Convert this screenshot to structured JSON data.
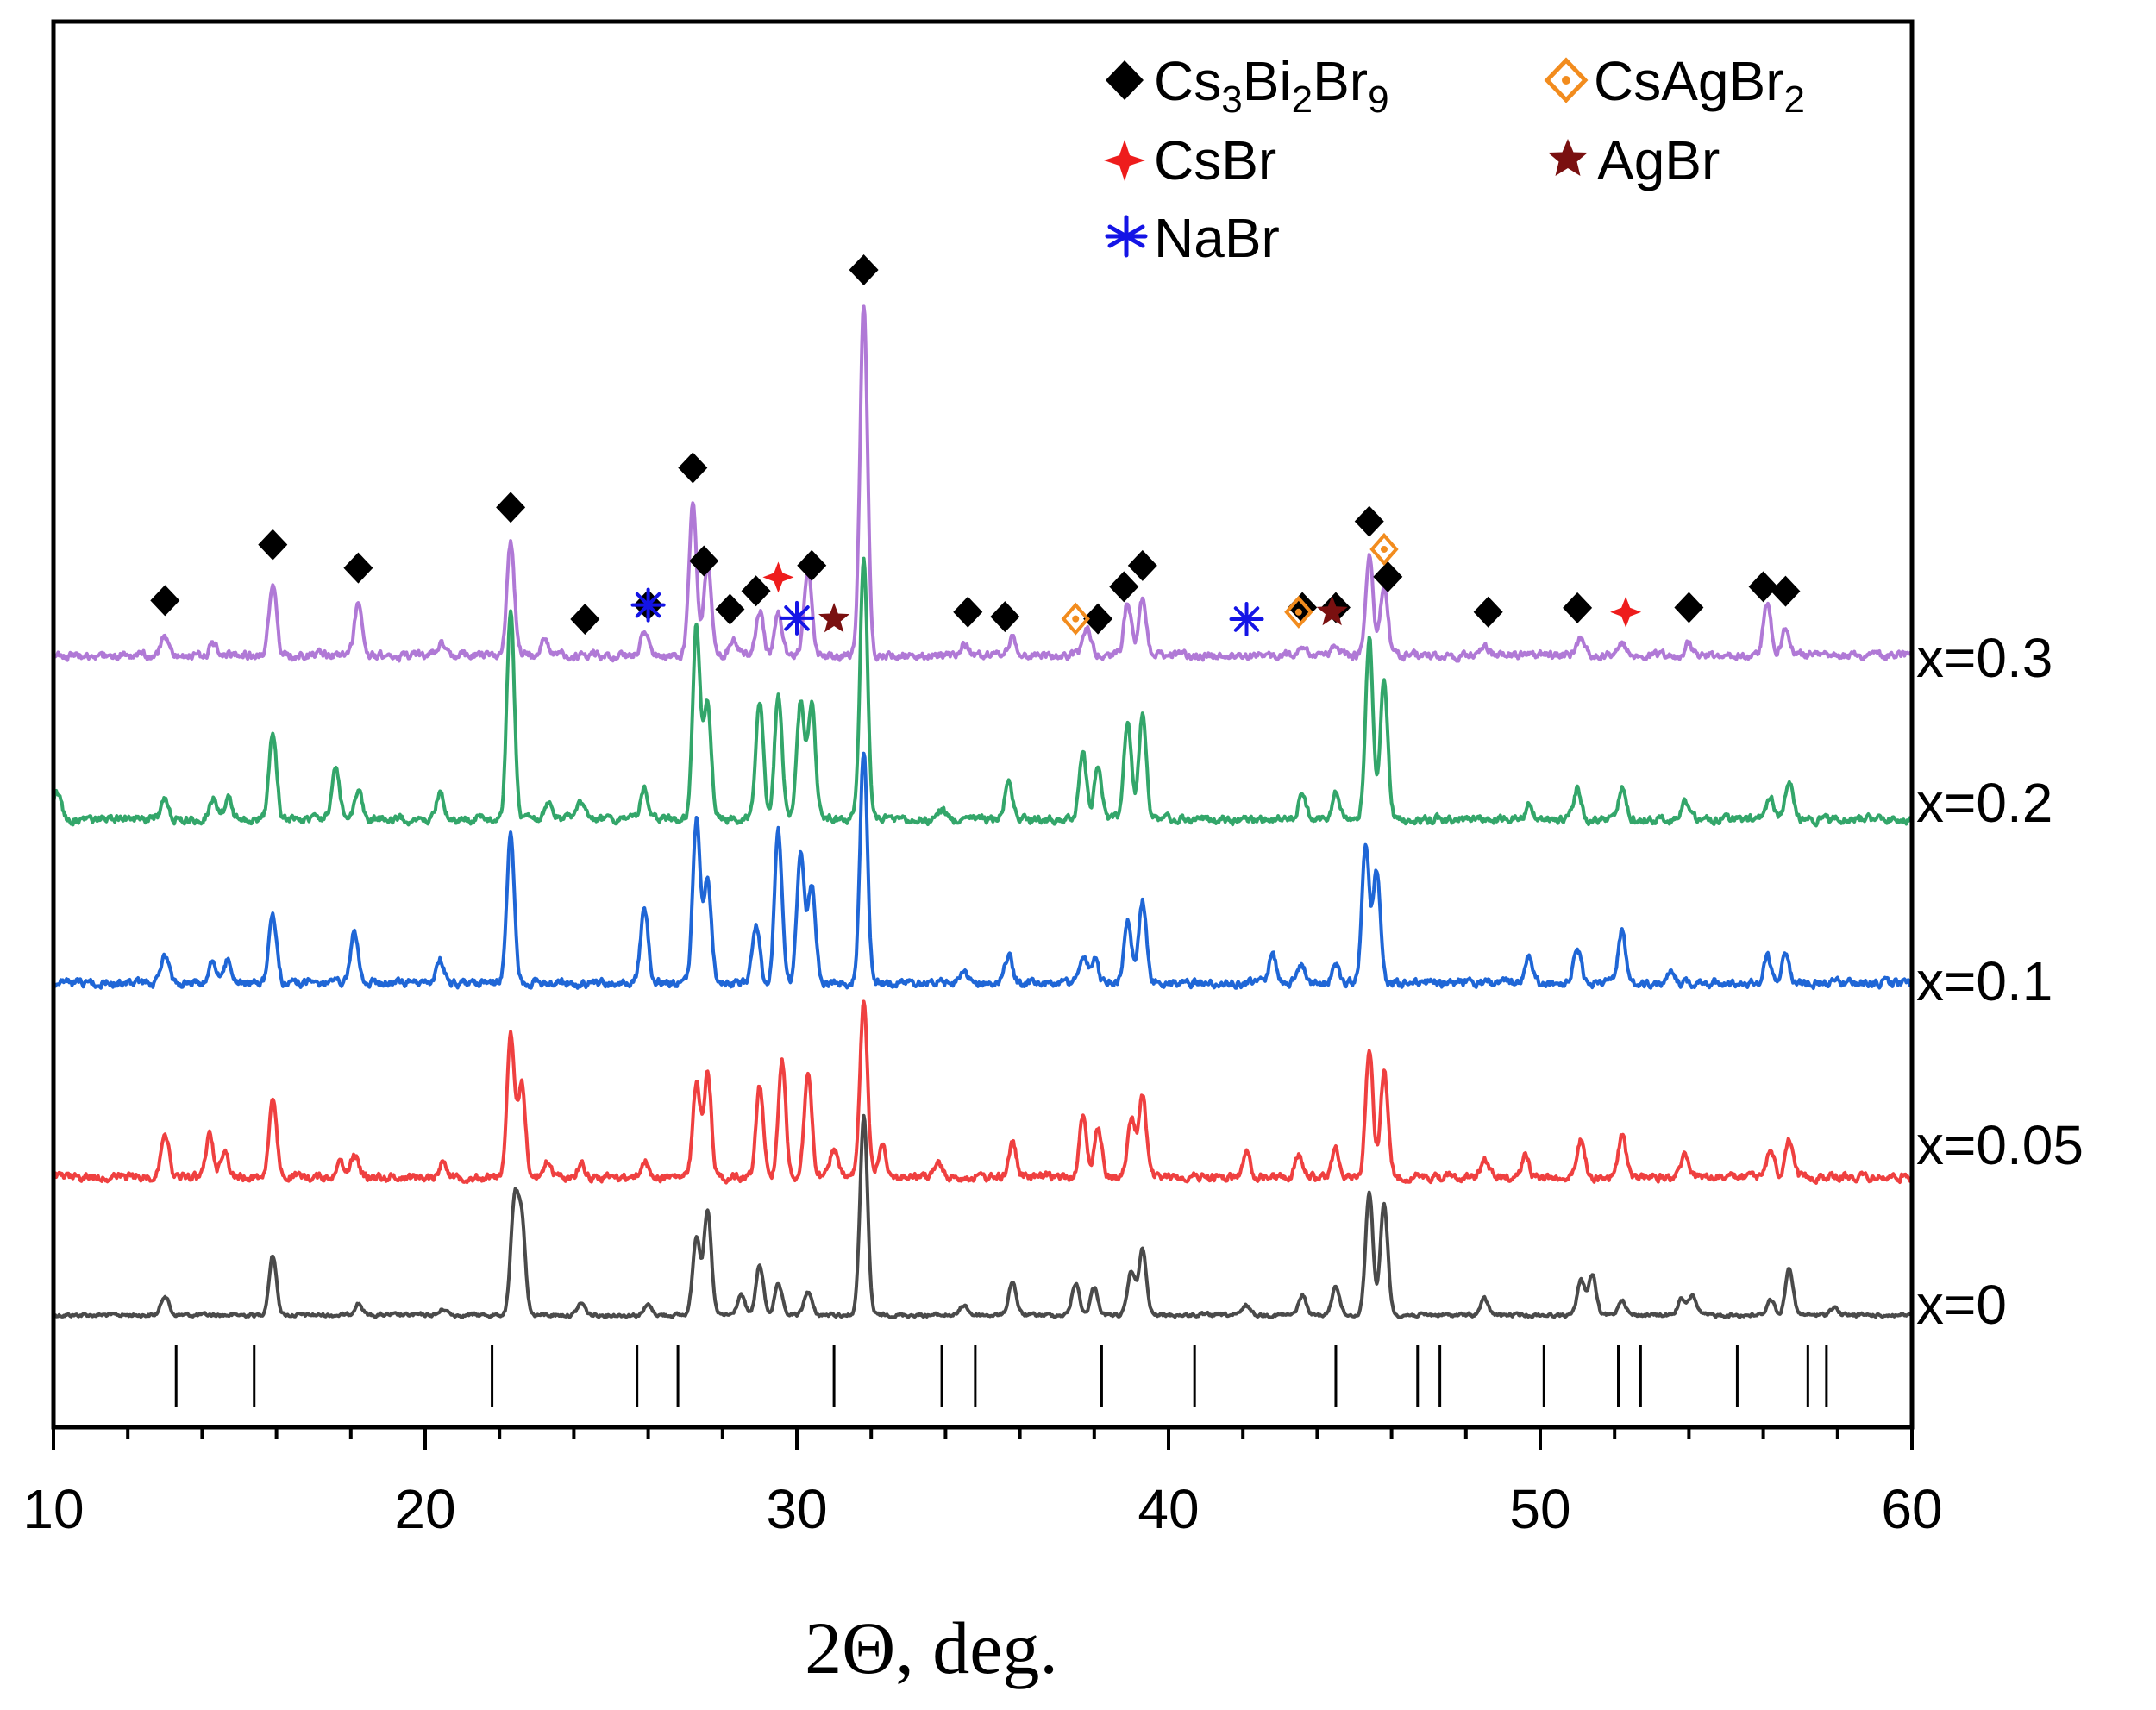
{
  "chart_data": {
    "type": "line",
    "title": "",
    "xlabel": "2Θ, deg.",
    "ylabel": "",
    "xlim": [
      10,
      60
    ],
    "xticks": [
      10,
      20,
      30,
      40,
      50,
      60
    ],
    "grid": false,
    "series": [
      {
        "name": "x=0",
        "color": "#4a4a4a",
        "offset": 0,
        "peaks": [
          [
            13.0,
            0.1
          ],
          [
            15.9,
            0.3
          ],
          [
            18.2,
            0.06
          ],
          [
            20.5,
            0.03
          ],
          [
            22.4,
            0.55
          ],
          [
            22.6,
            0.45
          ],
          [
            24.2,
            0.06
          ],
          [
            26.0,
            0.05
          ],
          [
            27.3,
            0.4
          ],
          [
            27.6,
            0.52
          ],
          [
            28.5,
            0.1
          ],
          [
            29.0,
            0.25
          ],
          [
            29.5,
            0.15
          ],
          [
            30.3,
            0.12
          ],
          [
            31.8,
            1.0
          ],
          [
            34.5,
            0.05
          ],
          [
            35.8,
            0.17
          ],
          [
            37.5,
            0.16
          ],
          [
            38.0,
            0.14
          ],
          [
            39.0,
            0.22
          ],
          [
            39.3,
            0.33
          ],
          [
            42.1,
            0.05
          ],
          [
            43.6,
            0.1
          ],
          [
            44.5,
            0.15
          ],
          [
            45.4,
            0.62
          ],
          [
            45.8,
            0.56
          ],
          [
            48.5,
            0.08
          ],
          [
            51.1,
            0.18
          ],
          [
            51.4,
            0.2
          ],
          [
            52.2,
            0.08
          ],
          [
            53.8,
            0.08
          ],
          [
            54.1,
            0.1
          ],
          [
            56.2,
            0.08
          ],
          [
            56.7,
            0.24
          ],
          [
            57.9,
            0.04
          ]
        ]
      },
      {
        "name": "x=0.05",
        "color": "#ef4040",
        "offset": 1,
        "peaks": [
          [
            13.0,
            0.2
          ],
          [
            14.2,
            0.18
          ],
          [
            14.6,
            0.12
          ],
          [
            15.9,
            0.33
          ],
          [
            17.7,
            0.07
          ],
          [
            18.1,
            0.1
          ],
          [
            20.5,
            0.07
          ],
          [
            22.3,
            0.6
          ],
          [
            22.6,
            0.4
          ],
          [
            23.3,
            0.07
          ],
          [
            24.2,
            0.06
          ],
          [
            25.9,
            0.07
          ],
          [
            27.3,
            0.4
          ],
          [
            27.6,
            0.45
          ],
          [
            29.0,
            0.4
          ],
          [
            29.6,
            0.5
          ],
          [
            30.3,
            0.45
          ],
          [
            31.0,
            0.12
          ],
          [
            31.8,
            0.75
          ],
          [
            32.3,
            0.15
          ],
          [
            33.8,
            0.06
          ],
          [
            35.8,
            0.15
          ],
          [
            37.7,
            0.25
          ],
          [
            38.1,
            0.22
          ],
          [
            39.0,
            0.25
          ],
          [
            39.3,
            0.35
          ],
          [
            42.1,
            0.1
          ],
          [
            43.5,
            0.09
          ],
          [
            44.5,
            0.12
          ],
          [
            45.4,
            0.55
          ],
          [
            45.8,
            0.45
          ],
          [
            48.5,
            0.08
          ],
          [
            49.6,
            0.09
          ],
          [
            51.1,
            0.16
          ],
          [
            52.2,
            0.18
          ],
          [
            53.9,
            0.1
          ],
          [
            56.2,
            0.12
          ],
          [
            56.7,
            0.15
          ]
        ]
      },
      {
        "name": "x=0.1",
        "color": "#1f66d6",
        "offset": 2,
        "peaks": [
          [
            13.0,
            0.12
          ],
          [
            14.3,
            0.1
          ],
          [
            14.7,
            0.1
          ],
          [
            15.9,
            0.3
          ],
          [
            18.1,
            0.22
          ],
          [
            20.4,
            0.1
          ],
          [
            22.3,
            0.65
          ],
          [
            25.9,
            0.32
          ],
          [
            27.3,
            0.7
          ],
          [
            27.6,
            0.45
          ],
          [
            28.9,
            0.25
          ],
          [
            29.5,
            0.65
          ],
          [
            30.1,
            0.55
          ],
          [
            30.4,
            0.42
          ],
          [
            31.8,
            1.0
          ],
          [
            34.5,
            0.05
          ],
          [
            35.7,
            0.12
          ],
          [
            37.7,
            0.12
          ],
          [
            38.0,
            0.1
          ],
          [
            38.9,
            0.28
          ],
          [
            39.3,
            0.35
          ],
          [
            42.8,
            0.12
          ],
          [
            43.6,
            0.08
          ],
          [
            44.5,
            0.08
          ],
          [
            45.3,
            0.58
          ],
          [
            45.6,
            0.48
          ],
          [
            49.7,
            0.12
          ],
          [
            51.0,
            0.15
          ],
          [
            52.2,
            0.22
          ],
          [
            53.5,
            0.06
          ],
          [
            56.1,
            0.12
          ],
          [
            56.6,
            0.12
          ]
        ]
      },
      {
        "name": "x=0.2",
        "color": "#33a66a",
        "offset": 3,
        "peaks": [
          [
            10.1,
            0.1
          ],
          [
            13.0,
            0.08
          ],
          [
            14.3,
            0.08
          ],
          [
            14.7,
            0.08
          ],
          [
            15.9,
            0.33
          ],
          [
            17.6,
            0.2
          ],
          [
            18.2,
            0.12
          ],
          [
            20.4,
            0.1
          ],
          [
            22.3,
            0.8
          ],
          [
            23.3,
            0.06
          ],
          [
            24.2,
            0.06
          ],
          [
            25.9,
            0.12
          ],
          [
            27.3,
            0.75
          ],
          [
            27.6,
            0.45
          ],
          [
            29.0,
            0.45
          ],
          [
            29.5,
            0.48
          ],
          [
            30.1,
            0.45
          ],
          [
            30.4,
            0.45
          ],
          [
            31.8,
            1.0
          ],
          [
            33.9,
            0.04
          ],
          [
            35.7,
            0.15
          ],
          [
            37.7,
            0.25
          ],
          [
            38.1,
            0.2
          ],
          [
            38.9,
            0.38
          ],
          [
            39.3,
            0.4
          ],
          [
            43.6,
            0.1
          ],
          [
            44.5,
            0.1
          ],
          [
            45.4,
            0.7
          ],
          [
            45.8,
            0.55
          ],
          [
            49.7,
            0.06
          ],
          [
            51.0,
            0.12
          ],
          [
            52.2,
            0.12
          ],
          [
            53.9,
            0.07
          ],
          [
            56.2,
            0.08
          ],
          [
            56.7,
            0.15
          ]
        ]
      },
      {
        "name": "x=0.3",
        "color": "#b079d6",
        "offset": 4,
        "peaks": [
          [
            13.0,
            0.08
          ],
          [
            14.3,
            0.05
          ],
          [
            15.9,
            0.32
          ],
          [
            18.2,
            0.22
          ],
          [
            20.4,
            0.05
          ],
          [
            22.3,
            0.48
          ],
          [
            23.2,
            0.06
          ],
          [
            25.9,
            0.1
          ],
          [
            27.2,
            0.65
          ],
          [
            27.6,
            0.4
          ],
          [
            28.3,
            0.07
          ],
          [
            29.0,
            0.2
          ],
          [
            29.5,
            0.18
          ],
          [
            30.3,
            0.38
          ],
          [
            31.8,
            1.5
          ],
          [
            34.5,
            0.05
          ],
          [
            35.8,
            0.08
          ],
          [
            37.8,
            0.12
          ],
          [
            38.9,
            0.23
          ],
          [
            39.3,
            0.23
          ],
          [
            43.6,
            0.05
          ],
          [
            44.5,
            0.05
          ],
          [
            45.4,
            0.42
          ],
          [
            45.8,
            0.3
          ],
          [
            48.5,
            0.05
          ],
          [
            51.1,
            0.08
          ],
          [
            52.2,
            0.05
          ],
          [
            54.0,
            0.05
          ],
          [
            56.1,
            0.23
          ],
          [
            56.6,
            0.12
          ]
        ]
      }
    ],
    "reference_ticks": [
      13.3,
      15.4,
      21.8,
      25.7,
      26.8,
      31.0,
      33.9,
      34.8,
      38.2,
      40.7,
      44.5,
      46.7,
      47.3,
      50.1,
      52.1,
      52.7,
      55.3,
      57.2,
      57.7
    ],
    "phase_markers": [
      {
        "phase": "Cs3Bi2Br9",
        "x": 13.0
      },
      {
        "phase": "Cs3Bi2Br9",
        "x": 15.9
      },
      {
        "phase": "Cs3Bi2Br9",
        "x": 18.2
      },
      {
        "phase": "Cs3Bi2Br9",
        "x": 22.3
      },
      {
        "phase": "Cs3Bi2Br9",
        "x": 24.3
      },
      {
        "phase": "Cs3Bi2Br9",
        "x": 26.0
      },
      {
        "phase": "Cs3Bi2Br9",
        "x": 27.2
      },
      {
        "phase": "Cs3Bi2Br9",
        "x": 27.5
      },
      {
        "phase": "Cs3Bi2Br9",
        "x": 28.2
      },
      {
        "phase": "Cs3Bi2Br9",
        "x": 28.9
      },
      {
        "phase": "Cs3Bi2Br9",
        "x": 30.4
      },
      {
        "phase": "Cs3Bi2Br9",
        "x": 31.8
      },
      {
        "phase": "Cs3Bi2Br9",
        "x": 34.6
      },
      {
        "phase": "Cs3Bi2Br9",
        "x": 35.6
      },
      {
        "phase": "Cs3Bi2Br9",
        "x": 38.1
      },
      {
        "phase": "Cs3Bi2Br9",
        "x": 38.8
      },
      {
        "phase": "Cs3Bi2Br9",
        "x": 39.3
      },
      {
        "phase": "Cs3Bi2Br9",
        "x": 43.6
      },
      {
        "phase": "Cs3Bi2Br9",
        "x": 44.5
      },
      {
        "phase": "Cs3Bi2Br9",
        "x": 45.4
      },
      {
        "phase": "Cs3Bi2Br9",
        "x": 45.9
      },
      {
        "phase": "Cs3Bi2Br9",
        "x": 48.6
      },
      {
        "phase": "Cs3Bi2Br9",
        "x": 51.0
      },
      {
        "phase": "Cs3Bi2Br9",
        "x": 54.0
      },
      {
        "phase": "Cs3Bi2Br9",
        "x": 56.0
      },
      {
        "phase": "Cs3Bi2Br9",
        "x": 56.6
      },
      {
        "phase": "CsAgBr2",
        "x": 37.5
      },
      {
        "phase": "CsAgBr2",
        "x": 43.5
      },
      {
        "phase": "CsAgBr2",
        "x": 45.8
      },
      {
        "phase": "CsBr",
        "x": 29.5
      },
      {
        "phase": "CsBr",
        "x": 52.3
      },
      {
        "phase": "AgBr",
        "x": 31.0
      },
      {
        "phase": "AgBr",
        "x": 44.4
      },
      {
        "phase": "NaBr",
        "x": 26.0
      },
      {
        "phase": "NaBr",
        "x": 30.0
      },
      {
        "phase": "NaBr",
        "x": 42.1
      }
    ]
  },
  "legend": {
    "items": [
      {
        "phase": "Cs3Bi2Br9",
        "base": "Cs",
        "s1": "3",
        "b2": "Bi",
        "s2": "2",
        "b3": "Br",
        "s3": "9",
        "symbol": "diamond-icon",
        "color": "#000000"
      },
      {
        "phase": "CsAgBr2",
        "base": "CsAgBr",
        "s1": "2",
        "symbol": "hollow-diamond-icon",
        "color": "#f28c1e"
      },
      {
        "phase": "CsBr",
        "base": "CsBr",
        "symbol": "four-point-star-icon",
        "color": "#ee1c1c"
      },
      {
        "phase": "AgBr",
        "base": "AgBr",
        "symbol": "star-icon",
        "color": "#7a1010"
      },
      {
        "phase": "NaBr",
        "base": "NaBr",
        "symbol": "asterisk-icon",
        "color": "#1414e6"
      }
    ]
  }
}
